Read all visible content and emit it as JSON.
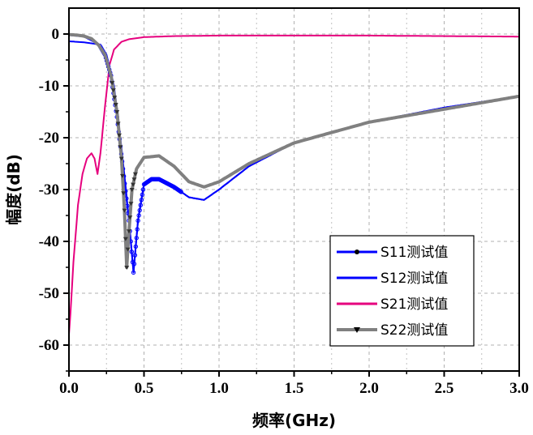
{
  "chart_data": {
    "type": "line",
    "xlabel": "频率(GHz)",
    "ylabel": "幅度(dB)",
    "xlim": [
      0,
      3.0
    ],
    "ylim": [
      -65,
      5
    ],
    "x_ticks": [
      "0.0",
      "0.5",
      "1.0",
      "1.5",
      "2.0",
      "2.5",
      "3.0"
    ],
    "y_ticks": [
      "0",
      "-10",
      "-20",
      "-30",
      "-40",
      "-50",
      "-60"
    ],
    "grid": true,
    "legend_position": "bottom-right",
    "series": [
      {
        "name": "S11测试值",
        "color": "#0000ff",
        "marker": "dot",
        "points": [
          [
            0.0,
            -1.4
          ],
          [
            0.05,
            -1.5
          ],
          [
            0.1,
            -1.6
          ],
          [
            0.15,
            -1.8
          ],
          [
            0.2,
            -2.0
          ],
          [
            0.24,
            -4.0
          ],
          [
            0.28,
            -8.0
          ],
          [
            0.32,
            -16.0
          ],
          [
            0.36,
            -26.0
          ],
          [
            0.4,
            -36.0
          ],
          [
            0.43,
            -46.0
          ],
          [
            0.46,
            -36.0
          ],
          [
            0.5,
            -29.0
          ],
          [
            0.55,
            -28.0
          ],
          [
            0.6,
            -28.0
          ],
          [
            0.7,
            -29.5
          ],
          [
            0.8,
            -31.5
          ],
          [
            0.9,
            -32.0
          ],
          [
            1.0,
            -30.0
          ],
          [
            1.2,
            -25.5
          ],
          [
            1.5,
            -21.0
          ],
          [
            2.0,
            -17.0
          ],
          [
            2.5,
            -14.2
          ],
          [
            3.0,
            -12.0
          ]
        ]
      },
      {
        "name": "S12测试值",
        "color": "#0000ff",
        "marker": "none",
        "points": [
          [
            0.0,
            -0.2
          ],
          [
            0.1,
            -0.5
          ],
          [
            0.2,
            -2.0
          ],
          [
            0.25,
            -4.0
          ],
          [
            0.3,
            -10.0
          ],
          [
            0.35,
            -22.0
          ],
          [
            0.38,
            -30.0
          ],
          [
            0.4,
            -36.0
          ],
          [
            0.43,
            -46.0
          ],
          [
            0.46,
            -36.0
          ],
          [
            0.5,
            -29.0
          ],
          [
            0.55,
            -28.0
          ],
          [
            0.6,
            -28.0
          ],
          [
            0.7,
            -29.5
          ],
          [
            0.8,
            -31.5
          ],
          [
            0.9,
            -32.0
          ],
          [
            1.0,
            -30.0
          ],
          [
            1.2,
            -25.5
          ],
          [
            1.5,
            -21.0
          ],
          [
            2.0,
            -17.0
          ],
          [
            2.5,
            -14.2
          ],
          [
            3.0,
            -12.0
          ]
        ]
      },
      {
        "name": "S21测试值",
        "color": "#e6007e",
        "marker": "none",
        "points": [
          [
            0.0,
            -58.0
          ],
          [
            0.01,
            -54.0
          ],
          [
            0.03,
            -44.0
          ],
          [
            0.06,
            -33.0
          ],
          [
            0.09,
            -27.0
          ],
          [
            0.12,
            -24.0
          ],
          [
            0.15,
            -23.0
          ],
          [
            0.17,
            -24.0
          ],
          [
            0.19,
            -27.0
          ],
          [
            0.21,
            -23.0
          ],
          [
            0.24,
            -14.0
          ],
          [
            0.27,
            -6.0
          ],
          [
            0.3,
            -3.0
          ],
          [
            0.35,
            -1.5
          ],
          [
            0.4,
            -1.0
          ],
          [
            0.5,
            -0.6
          ],
          [
            0.7,
            -0.4
          ],
          [
            1.0,
            -0.3
          ],
          [
            2.0,
            -0.3
          ],
          [
            3.0,
            -0.5
          ]
        ]
      },
      {
        "name": "S22测试值",
        "color": "#808080",
        "marker": "triangle-down",
        "points": [
          [
            0.0,
            -0.1
          ],
          [
            0.05,
            -0.2
          ],
          [
            0.1,
            -0.4
          ],
          [
            0.15,
            -0.9
          ],
          [
            0.2,
            -2.2
          ],
          [
            0.24,
            -4.0
          ],
          [
            0.28,
            -8.0
          ],
          [
            0.32,
            -15.0
          ],
          [
            0.35,
            -24.0
          ],
          [
            0.37,
            -34.0
          ],
          [
            0.385,
            -45.0
          ],
          [
            0.4,
            -38.0
          ],
          [
            0.42,
            -30.0
          ],
          [
            0.45,
            -26.0
          ],
          [
            0.5,
            -23.8
          ],
          [
            0.6,
            -23.5
          ],
          [
            0.7,
            -25.5
          ],
          [
            0.8,
            -28.5
          ],
          [
            0.9,
            -29.5
          ],
          [
            1.0,
            -28.5
          ],
          [
            1.2,
            -25.0
          ],
          [
            1.5,
            -21.0
          ],
          [
            2.0,
            -17.0
          ],
          [
            2.5,
            -14.5
          ],
          [
            3.0,
            -12.0
          ]
        ]
      }
    ]
  }
}
